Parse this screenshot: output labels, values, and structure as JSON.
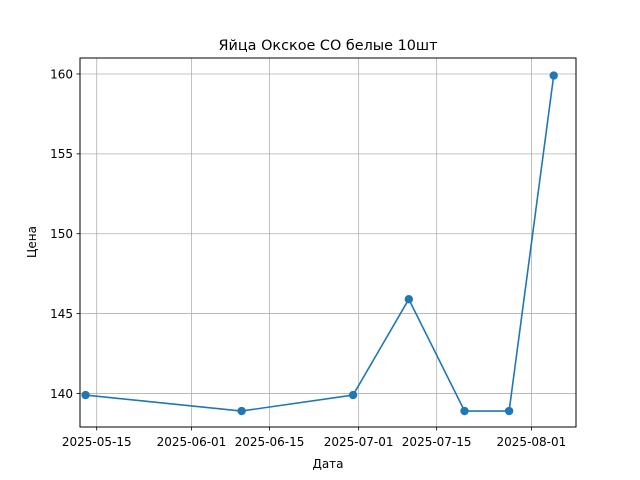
{
  "chart_data": {
    "type": "line",
    "title": "Яйца Окское СО белые 10шт",
    "xlabel": "Дата",
    "ylabel": "Цена",
    "x_ticks": [
      "2025-05-15",
      "2025-06-01",
      "2025-06-15",
      "2025-07-01",
      "2025-07-15",
      "2025-08-01"
    ],
    "y_ticks": [
      140,
      145,
      150,
      155,
      160
    ],
    "xlim": [
      "2025-05-12",
      "2025-08-09"
    ],
    "ylim": [
      137.9,
      161.0
    ],
    "grid": true,
    "series": [
      {
        "x": [
          "2025-05-13",
          "2025-06-10",
          "2025-06-30",
          "2025-07-10",
          "2025-07-20",
          "2025-07-28",
          "2025-08-05"
        ],
        "y": [
          139.9,
          138.9,
          139.9,
          145.9,
          138.9,
          138.9,
          159.9
        ]
      }
    ],
    "colors": {
      "line": "#1f77b4",
      "grid": "#b0b0b0"
    }
  }
}
